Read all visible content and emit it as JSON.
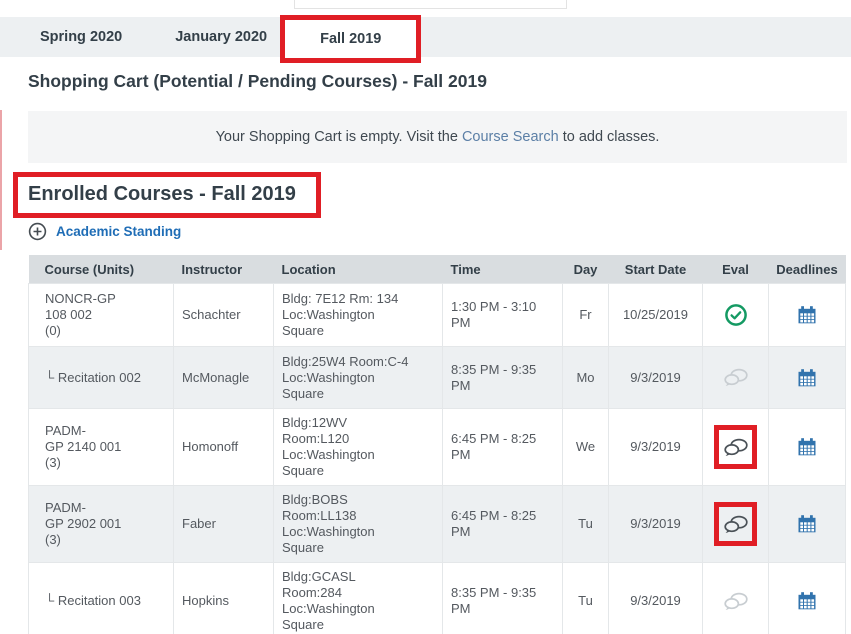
{
  "tabs": {
    "items": [
      {
        "label": "Spring 2020",
        "active": false,
        "annotated": false
      },
      {
        "label": "January 2020",
        "active": false,
        "annotated": false
      },
      {
        "label": "Fall 2019",
        "active": true,
        "annotated": true
      }
    ]
  },
  "shopping_cart": {
    "title": "Shopping Cart (Potential / Pending Courses) - Fall 2019",
    "empty_message_prefix": "Your Shopping Cart is empty. Visit the ",
    "empty_message_link": "Course Search",
    "empty_message_suffix": " to add classes."
  },
  "enrolled": {
    "title": "Enrolled Courses - Fall 2019",
    "annotated": true,
    "academic_standing_label": "Academic Standing",
    "academic_standing_icon": "plus-circle-icon"
  },
  "table": {
    "columns": [
      "Course (Units)",
      "Instructor",
      "Location",
      "Time",
      "Day",
      "Start Date",
      "Eval",
      "Deadlines"
    ],
    "recitation_prefix": "└",
    "rows": [
      {
        "course": "NONCR-GP\n108 002\n(0)",
        "is_recitation": false,
        "instructor": "Schachter",
        "location": "Bldg: 7E12 Rm: 134\nLoc:Washington\nSquare",
        "time": "1:30 PM - 3:10\nPM",
        "day": "Fr",
        "start_date": "10/25/2019",
        "eval_icon": "check-circle-icon",
        "eval_state": "completed",
        "eval_annotated": false,
        "deadlines_icon": "calendar-icon"
      },
      {
        "course": "Recitation 002",
        "is_recitation": true,
        "instructor": "McMonagle",
        "location": "Bldg:25W4 Room:C-4\nLoc:Washington\nSquare",
        "time": "8:35 PM - 9:35\nPM",
        "day": "Mo",
        "start_date": "9/3/2019",
        "eval_icon": "chat-bubbles-icon",
        "eval_state": "disabled",
        "eval_annotated": false,
        "deadlines_icon": "calendar-icon"
      },
      {
        "course": "PADM-\nGP 2140 001\n(3)",
        "is_recitation": false,
        "instructor": "Homonoff",
        "location": "Bldg:12WV\nRoom:L120\nLoc:Washington\nSquare",
        "time": "6:45 PM - 8:25\nPM",
        "day": "We",
        "start_date": "9/3/2019",
        "eval_icon": "chat-bubbles-icon",
        "eval_state": "available",
        "eval_annotated": true,
        "deadlines_icon": "calendar-icon"
      },
      {
        "course": "PADM-\nGP 2902 001\n(3)",
        "is_recitation": false,
        "instructor": "Faber",
        "location": "Bldg:BOBS\nRoom:LL138\nLoc:Washington\nSquare",
        "time": "6:45 PM - 8:25\nPM",
        "day": "Tu",
        "start_date": "9/3/2019",
        "eval_icon": "chat-bubbles-icon",
        "eval_state": "available",
        "eval_annotated": true,
        "deadlines_icon": "calendar-icon"
      },
      {
        "course": "Recitation 003",
        "is_recitation": true,
        "instructor": "Hopkins",
        "location": "Bldg:GCASL\nRoom:284\nLoc:Washington\nSquare",
        "time": "8:35 PM - 9:35\nPM",
        "day": "Tu",
        "start_date": "9/3/2019",
        "eval_icon": "chat-bubbles-icon",
        "eval_state": "disabled",
        "eval_annotated": false,
        "deadlines_icon": "calendar-icon"
      }
    ]
  },
  "colors": {
    "annotation_red": "#e01e25",
    "heading_navy": "#333f48",
    "link_blue": "#1f6db6",
    "muted_link_blue": "#5b7fa6",
    "eval_green": "#149a63",
    "calendar_blue": "#3173ad",
    "chat_gray": "#c8cdd1",
    "chat_dark": "#4a5157"
  }
}
